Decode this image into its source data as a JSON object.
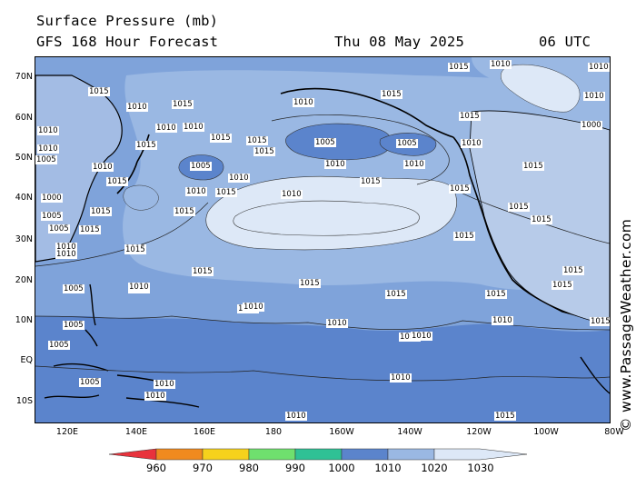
{
  "header": {
    "title": "Surface Pressure (mb)",
    "forecast": "GFS 168 Hour Forecast",
    "date": "Thu 08 May 2025",
    "time": "06 UTC"
  },
  "watermark": "© www.PassageWeather.com",
  "axes": {
    "lat_labels": [
      "70N",
      "60N",
      "50N",
      "40N",
      "30N",
      "20N",
      "10N",
      "EQ",
      "10S"
    ],
    "lon_labels": [
      "120E",
      "140E",
      "160E",
      "180",
      "160W",
      "140W",
      "120W",
      "100W",
      "80W"
    ]
  },
  "colorbar": {
    "labels": [
      "960",
      "970",
      "980",
      "990",
      "1000",
      "1010",
      "1020",
      "1030"
    ],
    "colors": [
      "#e8323c",
      "#f08a1e",
      "#f6d21c",
      "#6fe06e",
      "#2fc195",
      "#5b84cc",
      "#9ab8e3",
      "#dde8f7"
    ]
  },
  "isobar_labels": [
    "1015",
    "1010",
    "1015",
    "1010",
    "1015",
    "1010",
    "1015",
    "1010",
    "1015",
    "1015",
    "1010",
    "1015",
    "1010",
    "1005",
    "1005",
    "1010",
    "1015",
    "1010",
    "1015",
    "1010",
    "1015",
    "1015",
    "1015",
    "1015",
    "1010",
    "1005",
    "1010",
    "1010",
    "1010",
    "1005",
    "1000",
    "1005",
    "1005",
    "1015",
    "1015",
    "1015",
    "1015",
    "1005",
    "1010",
    "1010",
    "1015",
    "1015",
    "1010",
    "1010",
    "1010",
    "1015",
    "1010",
    "1015",
    "1015",
    "1015",
    "1010",
    "1010",
    "1010",
    "1010",
    "1005",
    "1005",
    "1005",
    "1010",
    "1010",
    "1010",
    "1010",
    "1015",
    "1015",
    "1010",
    "1000",
    "1015",
    "1010",
    "1010",
    "1015",
    "1015",
    "1015",
    "1015",
    "1015"
  ],
  "map_colors": {
    "ocean_low": "#5b84cc",
    "ocean_mid": "#7fa3da",
    "ocean_high": "#9ab8e3",
    "ocean_top": "#dde8f7",
    "land": "#000000"
  }
}
